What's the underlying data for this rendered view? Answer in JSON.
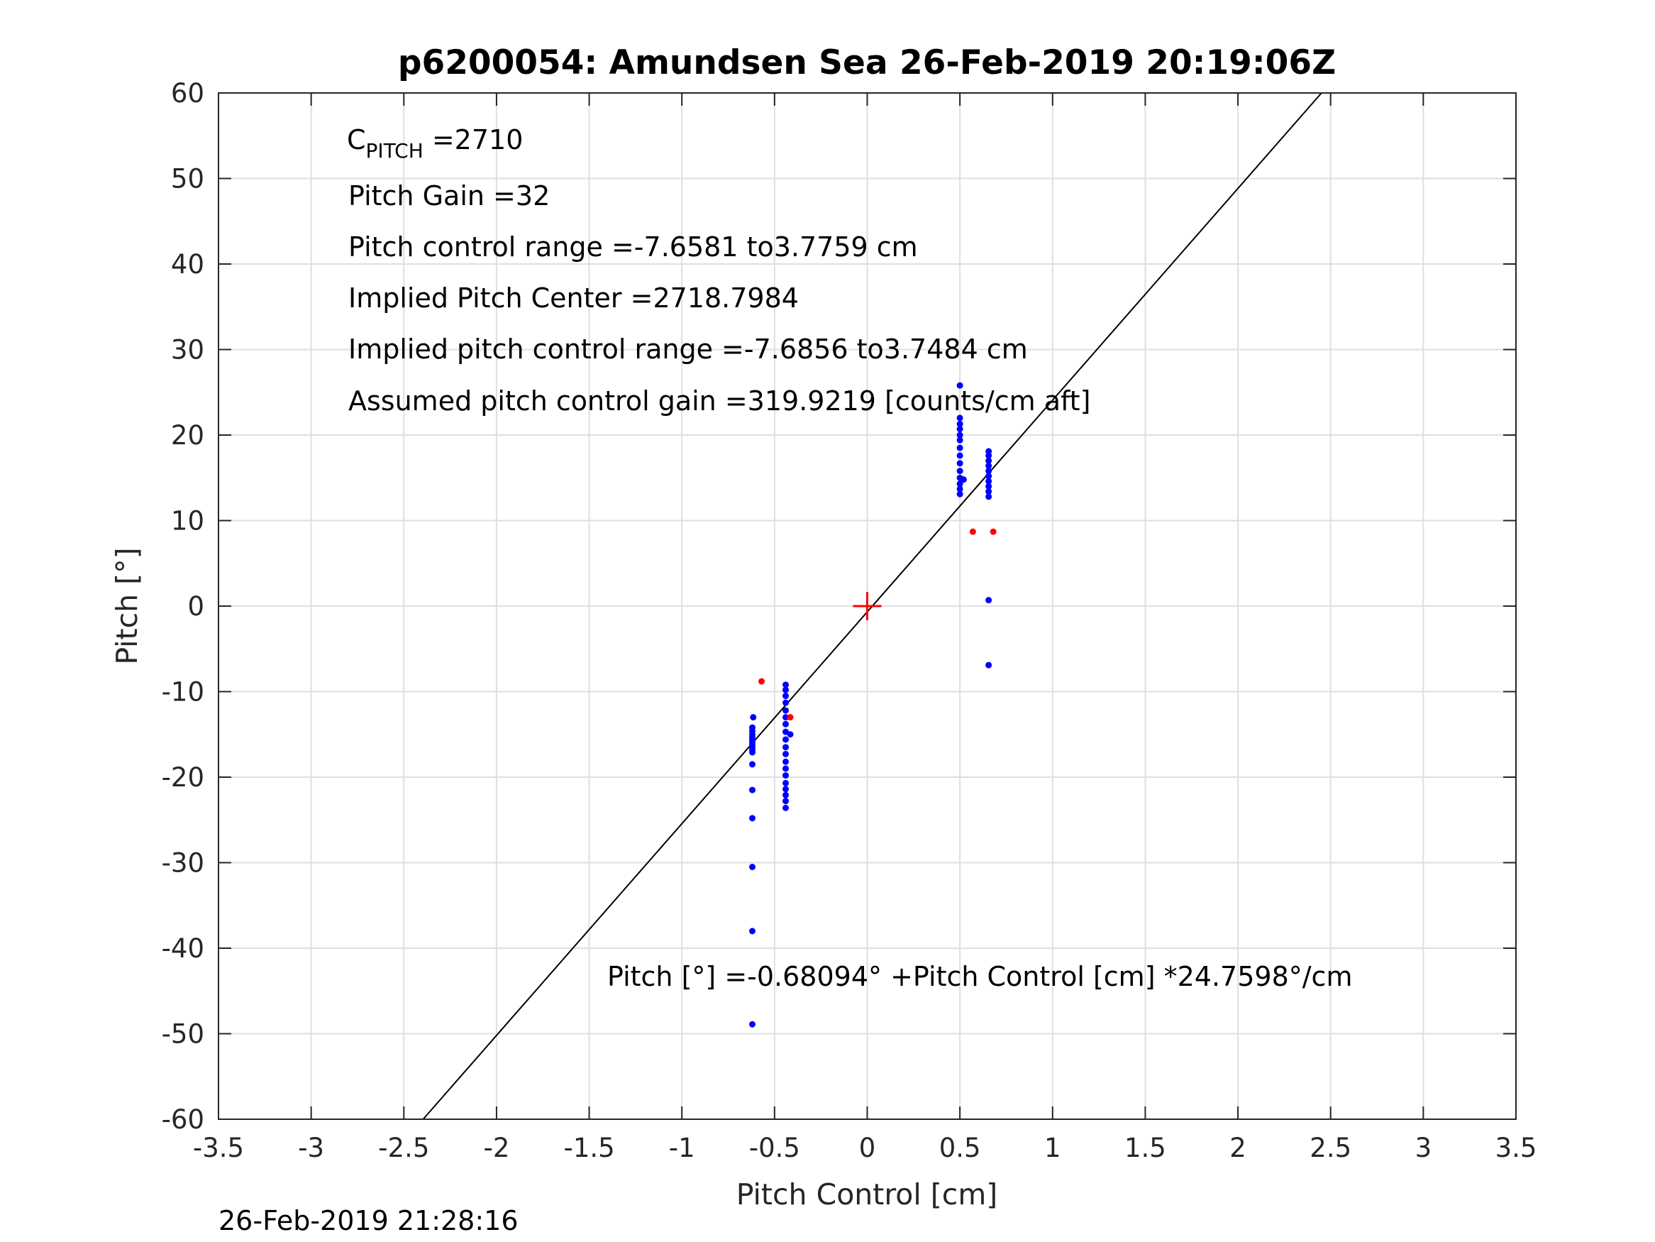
{
  "chart_data": {
    "type": "scatter",
    "title": "p6200054: Amundsen Sea 26-Feb-2019 20:19:06Z",
    "xlabel": "Pitch Control [cm]",
    "ylabel": "Pitch [°]",
    "xlim": [
      -3.5,
      3.5
    ],
    "ylim": [
      -60,
      60
    ],
    "xticks": [
      -3.5,
      -3,
      -2.5,
      -2,
      -1.5,
      -1,
      -0.5,
      0,
      0.5,
      1,
      1.5,
      2,
      2.5,
      3,
      3.5
    ],
    "xtick_labels": [
      "-3.5",
      "-3",
      "-2.5",
      "-2",
      "-1.5",
      "-1",
      "-0.5",
      "0",
      "0.5",
      "1",
      "1.5",
      "2",
      "2.5",
      "3",
      "3.5"
    ],
    "yticks": [
      -60,
      -50,
      -40,
      -30,
      -20,
      -10,
      0,
      10,
      20,
      30,
      40,
      50,
      60
    ],
    "ytick_labels": [
      "-60",
      "-50",
      "-40",
      "-30",
      "-20",
      "-10",
      "0",
      "10",
      "20",
      "30",
      "40",
      "50",
      "60"
    ],
    "grid": true,
    "annotations": {
      "c_pitch_main": "C",
      "c_pitch_sub": "PITCH",
      "c_pitch_value": " =2710",
      "pitch_gain": "Pitch Gain =32",
      "pitch_control_range": "Pitch control range =-7.6581 to3.7759 cm",
      "implied_pitch_center": "Implied Pitch Center =2718.7984",
      "implied_pitch_control_range": "Implied pitch control range =-7.6856 to3.7484 cm",
      "assumed_gain": "Assumed pitch control gain =319.9219 [counts/cm aft]",
      "fit_equation": "Pitch [°] =-0.68094° +Pitch Control [cm] *24.7598°/cm"
    },
    "fit_line": {
      "intercept": -0.68094,
      "slope": 24.7598,
      "color": "#000000"
    },
    "center_marker": {
      "x": 0,
      "y": 0,
      "color": "#ff0000"
    },
    "series": [
      {
        "color": "#0000ff",
        "points": [
          [
            -0.615,
            -13.0
          ],
          [
            -0.62,
            -14.2
          ],
          [
            -0.62,
            -14.6
          ],
          [
            -0.62,
            -15.0
          ],
          [
            -0.62,
            -15.3
          ],
          [
            -0.62,
            -15.6
          ],
          [
            -0.62,
            -15.9
          ],
          [
            -0.62,
            -16.2
          ],
          [
            -0.62,
            -16.5
          ],
          [
            -0.62,
            -16.8
          ],
          [
            -0.62,
            -17.1
          ],
          [
            -0.62,
            -18.5
          ],
          [
            -0.62,
            -21.5
          ],
          [
            -0.62,
            -24.8
          ],
          [
            -0.62,
            -30.5
          ],
          [
            -0.62,
            -38.0
          ],
          [
            -0.62,
            -48.9
          ],
          [
            -0.44,
            -9.2
          ],
          [
            -0.44,
            -9.8
          ],
          [
            -0.44,
            -10.5
          ],
          [
            -0.44,
            -11.3
          ],
          [
            -0.44,
            -12.2
          ],
          [
            -0.44,
            -13.0
          ],
          [
            -0.44,
            -13.8
          ],
          [
            -0.44,
            -14.7
          ],
          [
            -0.44,
            -15.6
          ],
          [
            -0.44,
            -16.5
          ],
          [
            -0.44,
            -17.3
          ],
          [
            -0.44,
            -18.2
          ],
          [
            -0.44,
            -19.0
          ],
          [
            -0.44,
            -19.8
          ],
          [
            -0.44,
            -20.7
          ],
          [
            -0.44,
            -21.4
          ],
          [
            -0.44,
            -22.1
          ],
          [
            -0.44,
            -22.8
          ],
          [
            -0.44,
            -23.6
          ],
          [
            -0.415,
            -15.0
          ],
          [
            0.5,
            25.8
          ],
          [
            0.5,
            22.0
          ],
          [
            0.5,
            21.3
          ],
          [
            0.5,
            20.7
          ],
          [
            0.5,
            20.0
          ],
          [
            0.5,
            19.4
          ],
          [
            0.5,
            18.5
          ],
          [
            0.5,
            17.6
          ],
          [
            0.5,
            16.7
          ],
          [
            0.5,
            15.8
          ],
          [
            0.5,
            15.0
          ],
          [
            0.5,
            14.3
          ],
          [
            0.5,
            13.7
          ],
          [
            0.5,
            13.1
          ],
          [
            0.52,
            14.8
          ],
          [
            0.655,
            18.1
          ],
          [
            0.655,
            17.6
          ],
          [
            0.655,
            17.0
          ],
          [
            0.655,
            16.4
          ],
          [
            0.655,
            15.8
          ],
          [
            0.655,
            15.2
          ],
          [
            0.655,
            14.6
          ],
          [
            0.655,
            14.0
          ],
          [
            0.655,
            13.4
          ],
          [
            0.655,
            12.8
          ],
          [
            0.655,
            0.7
          ],
          [
            0.655,
            -6.9
          ]
        ]
      },
      {
        "color": "#ff0000",
        "points": [
          [
            -0.57,
            -8.8
          ],
          [
            -0.415,
            -13.0
          ],
          [
            0.57,
            8.7
          ],
          [
            0.68,
            8.7
          ]
        ]
      }
    ]
  },
  "footer": {
    "timestamp": "26-Feb-2019 21:28:16"
  }
}
